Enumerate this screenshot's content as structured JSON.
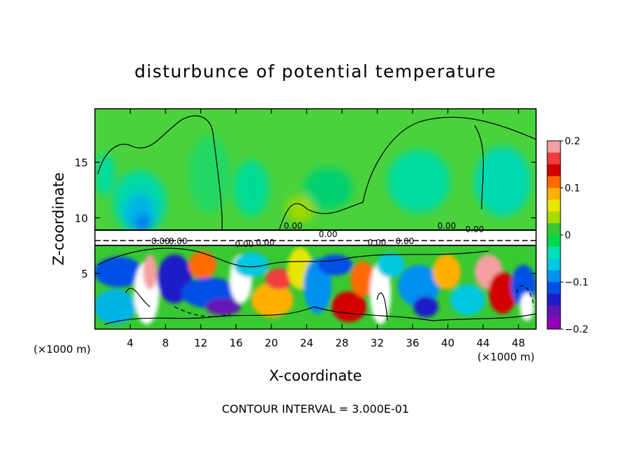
{
  "chart_data": {
    "type": "heatmap",
    "title": "disturbunce of potential temperature",
    "xlabel": "X-coordinate",
    "ylabel": "Z-coordinate",
    "x_unit_left": "(×1000 m)",
    "x_unit_right": "(×1000 m)",
    "xlim": [
      0,
      50
    ],
    "ylim": [
      0,
      19.8
    ],
    "x_ticks": [
      4,
      8,
      12,
      16,
      20,
      24,
      28,
      32,
      36,
      40,
      44,
      48
    ],
    "y_ticks": [
      5,
      10,
      15
    ],
    "colorbar": {
      "range": [
        -0.2,
        0.2
      ],
      "labels": [
        "0.2",
        "0.1",
        "0",
        "−0.1",
        "−0.2"
      ],
      "label_values": [
        0.2,
        0.1,
        0,
        -0.1,
        -0.2
      ],
      "colors": [
        "#f4a0a0",
        "#f03c3c",
        "#d20000",
        "#ff6a00",
        "#ffb000",
        "#e6e600",
        "#a8dc00",
        "#38c832",
        "#00d850",
        "#00e0b4",
        "#00c8e0",
        "#0090f0",
        "#0050e6",
        "#1e1ec8",
        "#6414b4",
        "#9600b4"
      ]
    },
    "contour_labels": [
      "0.00",
      "0.00",
      "0.00",
      "0.00",
      "0.00",
      "0.00",
      "0.00",
      "0.00",
      "0.00",
      "0.00"
    ],
    "footer": "CONTOUR INTERVAL = 3.000E-01"
  }
}
